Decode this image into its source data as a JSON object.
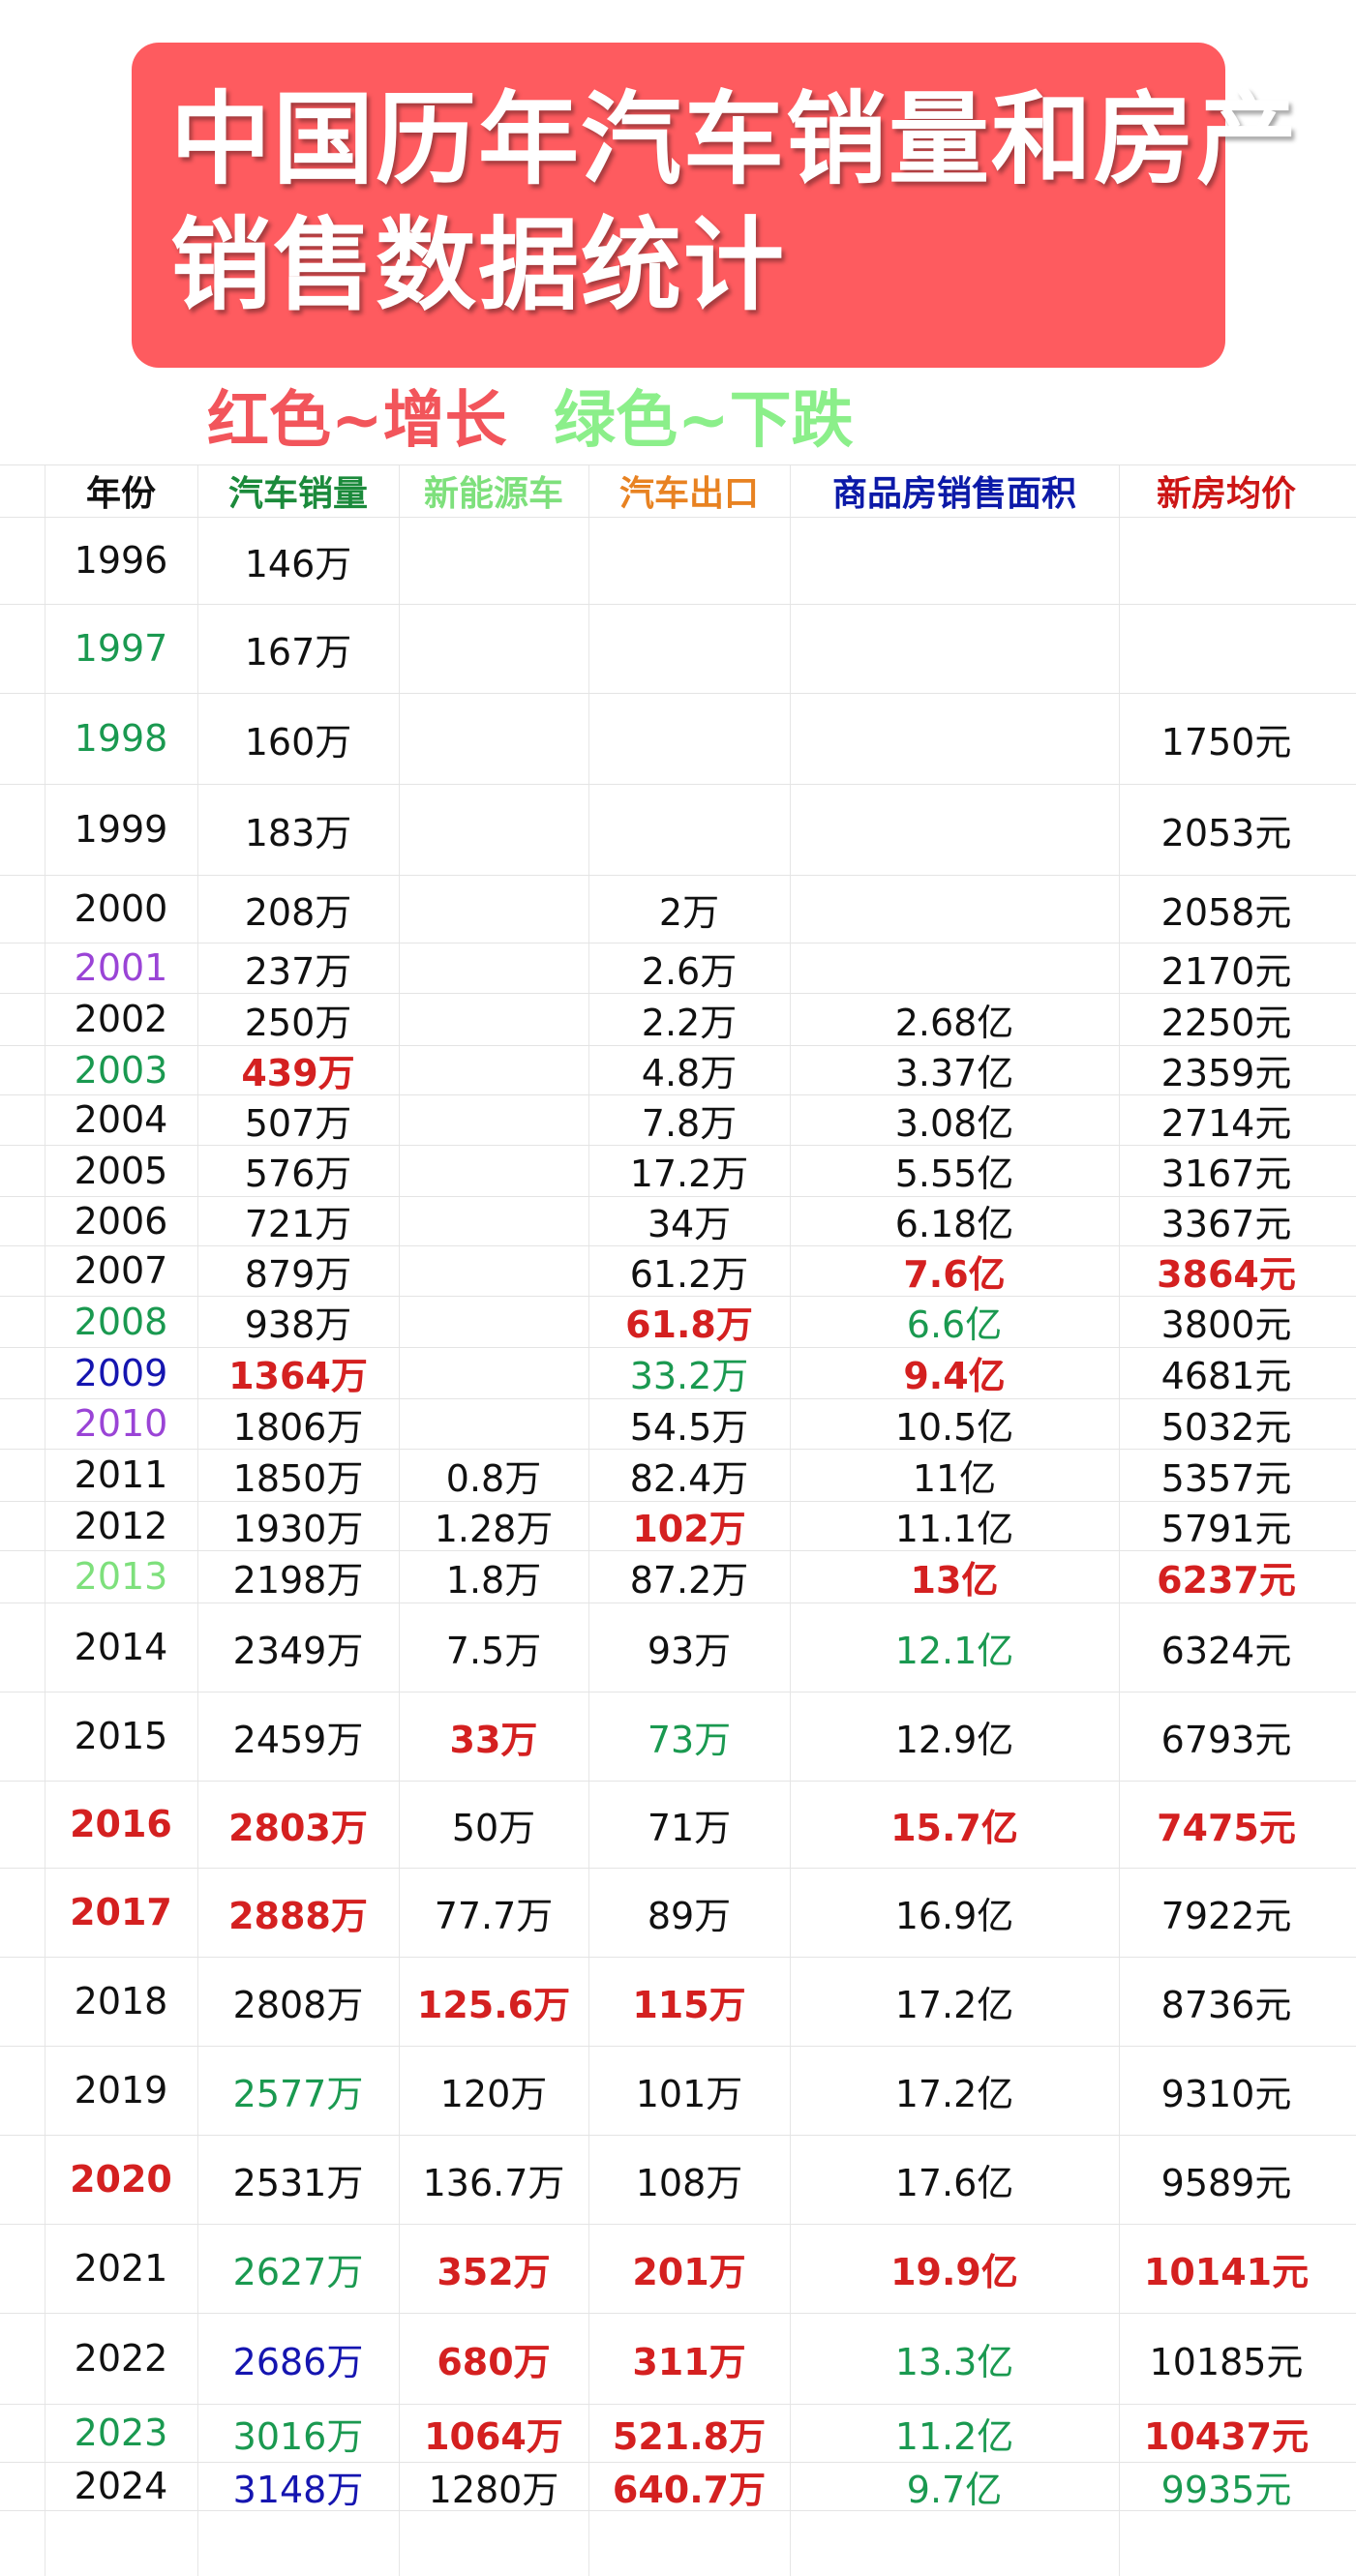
{
  "title_line1": "中国历年汽车销量和房产",
  "title_line2": "销售数据统计",
  "legend_up": "红色~增长",
  "legend_down": "绿色~下跌",
  "colors": {
    "banner": "#fe5b5f",
    "increase": "#d42020",
    "decrease": "#1a9950",
    "purple": "#9a44d6",
    "blue": "#1515b0",
    "lime": "#7ee07c"
  },
  "headers": [
    {
      "text": "年份",
      "color": "black"
    },
    {
      "text": "汽车销量",
      "color": "dgreen"
    },
    {
      "text": "新能源车",
      "color": "lime"
    },
    {
      "text": "汽车出口",
      "color": "orange"
    },
    {
      "text": "商品房销售面积",
      "color": "navy"
    },
    {
      "text": "新房均价",
      "color": "hred"
    }
  ],
  "rows": [
    {
      "year": [
        "1996",
        ""
      ],
      "cars": [
        "146万",
        ""
      ],
      "nev": [
        "",
        ""
      ],
      "export": [
        "",
        ""
      ],
      "area": [
        "",
        ""
      ],
      "price": [
        "",
        ""
      ]
    },
    {
      "year": [
        "1997",
        "green"
      ],
      "cars": [
        "167万",
        ""
      ],
      "nev": [
        "",
        ""
      ],
      "export": [
        "",
        ""
      ],
      "area": [
        "",
        ""
      ],
      "price": [
        "",
        ""
      ]
    },
    {
      "year": [
        "1998",
        "green"
      ],
      "cars": [
        "160万",
        ""
      ],
      "nev": [
        "",
        ""
      ],
      "export": [
        "",
        ""
      ],
      "area": [
        "",
        ""
      ],
      "price": [
        "1750元",
        ""
      ]
    },
    {
      "year": [
        "1999",
        ""
      ],
      "cars": [
        "183万",
        ""
      ],
      "nev": [
        "",
        ""
      ],
      "export": [
        "",
        ""
      ],
      "area": [
        "",
        ""
      ],
      "price": [
        "2053元",
        ""
      ]
    },
    {
      "year": [
        "2000",
        ""
      ],
      "cars": [
        "208万",
        ""
      ],
      "nev": [
        "",
        ""
      ],
      "export": [
        "2万",
        ""
      ],
      "area": [
        "",
        ""
      ],
      "price": [
        "2058元",
        ""
      ]
    },
    {
      "year": [
        "2001",
        "purple"
      ],
      "cars": [
        "237万",
        ""
      ],
      "nev": [
        "",
        ""
      ],
      "export": [
        "2.6万",
        ""
      ],
      "area": [
        "",
        ""
      ],
      "price": [
        "2170元",
        ""
      ]
    },
    {
      "year": [
        "2002",
        ""
      ],
      "cars": [
        "250万",
        ""
      ],
      "nev": [
        "",
        ""
      ],
      "export": [
        "2.2万",
        ""
      ],
      "area": [
        "2.68亿",
        ""
      ],
      "price": [
        "2250元",
        ""
      ]
    },
    {
      "year": [
        "2003",
        "green"
      ],
      "cars": [
        "439万",
        "red"
      ],
      "nev": [
        "",
        ""
      ],
      "export": [
        "4.8万",
        ""
      ],
      "area": [
        "3.37亿",
        ""
      ],
      "price": [
        "2359元",
        ""
      ]
    },
    {
      "year": [
        "2004",
        ""
      ],
      "cars": [
        "507万",
        ""
      ],
      "nev": [
        "",
        ""
      ],
      "export": [
        "7.8万",
        ""
      ],
      "area": [
        "3.08亿",
        ""
      ],
      "price": [
        "2714元",
        ""
      ]
    },
    {
      "year": [
        "2005",
        ""
      ],
      "cars": [
        "576万",
        ""
      ],
      "nev": [
        "",
        ""
      ],
      "export": [
        "17.2万",
        ""
      ],
      "area": [
        "5.55亿",
        ""
      ],
      "price": [
        "3167元",
        ""
      ]
    },
    {
      "year": [
        "2006",
        ""
      ],
      "cars": [
        "721万",
        ""
      ],
      "nev": [
        "",
        ""
      ],
      "export": [
        "34万",
        ""
      ],
      "area": [
        "6.18亿",
        ""
      ],
      "price": [
        "3367元",
        ""
      ]
    },
    {
      "year": [
        "2007",
        ""
      ],
      "cars": [
        "879万",
        ""
      ],
      "nev": [
        "",
        ""
      ],
      "export": [
        "61.2万",
        ""
      ],
      "area": [
        "7.6亿",
        "red"
      ],
      "price": [
        "3864元",
        "red"
      ]
    },
    {
      "year": [
        "2008",
        "green"
      ],
      "cars": [
        "938万",
        ""
      ],
      "nev": [
        "",
        ""
      ],
      "export": [
        "61.8万",
        "red"
      ],
      "area": [
        "6.6亿",
        "green"
      ],
      "price": [
        "3800元",
        ""
      ]
    },
    {
      "year": [
        "2009",
        "blue"
      ],
      "cars": [
        "1364万",
        "red"
      ],
      "nev": [
        "",
        ""
      ],
      "export": [
        "33.2万",
        "green"
      ],
      "area": [
        "9.4亿",
        "red"
      ],
      "price": [
        "4681元",
        ""
      ]
    },
    {
      "year": [
        "2010",
        "purple"
      ],
      "cars": [
        "1806万",
        ""
      ],
      "nev": [
        "",
        ""
      ],
      "export": [
        "54.5万",
        ""
      ],
      "area": [
        "10.5亿",
        ""
      ],
      "price": [
        "5032元",
        ""
      ]
    },
    {
      "year": [
        "2011",
        ""
      ],
      "cars": [
        "1850万",
        ""
      ],
      "nev": [
        "0.8万",
        ""
      ],
      "export": [
        "82.4万",
        ""
      ],
      "area": [
        "11亿",
        ""
      ],
      "price": [
        "5357元",
        ""
      ]
    },
    {
      "year": [
        "2012",
        ""
      ],
      "cars": [
        "1930万",
        ""
      ],
      "nev": [
        "1.28万",
        ""
      ],
      "export": [
        "102万",
        "red"
      ],
      "area": [
        "11.1亿",
        ""
      ],
      "price": [
        "5791元",
        ""
      ]
    },
    {
      "year": [
        "2013",
        "lime"
      ],
      "cars": [
        "2198万",
        ""
      ],
      "nev": [
        "1.8万",
        ""
      ],
      "export": [
        "87.2万",
        ""
      ],
      "area": [
        "13亿",
        "red"
      ],
      "price": [
        "6237元",
        "red"
      ]
    },
    {
      "year": [
        "2014",
        ""
      ],
      "cars": [
        "2349万",
        ""
      ],
      "nev": [
        "7.5万",
        ""
      ],
      "export": [
        "93万",
        ""
      ],
      "area": [
        "12.1亿",
        "green"
      ],
      "price": [
        "6324元",
        ""
      ]
    },
    {
      "year": [
        "2015",
        ""
      ],
      "cars": [
        "2459万",
        ""
      ],
      "nev": [
        "33万",
        "red"
      ],
      "export": [
        "73万",
        "green"
      ],
      "area": [
        "12.9亿",
        ""
      ],
      "price": [
        "6793元",
        ""
      ]
    },
    {
      "year": [
        "2016",
        "red"
      ],
      "cars": [
        "2803万",
        "red"
      ],
      "nev": [
        "50万",
        ""
      ],
      "export": [
        "71万",
        ""
      ],
      "area": [
        "15.7亿",
        "red"
      ],
      "price": [
        "7475元",
        "red"
      ]
    },
    {
      "year": [
        "2017",
        "red"
      ],
      "cars": [
        "2888万",
        "red"
      ],
      "nev": [
        "77.7万",
        ""
      ],
      "export": [
        "89万",
        ""
      ],
      "area": [
        "16.9亿",
        ""
      ],
      "price": [
        "7922元",
        ""
      ]
    },
    {
      "year": [
        "2018",
        ""
      ],
      "cars": [
        "2808万",
        ""
      ],
      "nev": [
        "125.6万",
        "red"
      ],
      "export": [
        "115万",
        "red"
      ],
      "area": [
        "17.2亿",
        ""
      ],
      "price": [
        "8736元",
        ""
      ]
    },
    {
      "year": [
        "2019",
        ""
      ],
      "cars": [
        "2577万",
        "green"
      ],
      "nev": [
        "120万",
        ""
      ],
      "export": [
        "101万",
        ""
      ],
      "area": [
        "17.2亿",
        ""
      ],
      "price": [
        "9310元",
        ""
      ]
    },
    {
      "year": [
        "2020",
        "red"
      ],
      "cars": [
        "2531万",
        ""
      ],
      "nev": [
        "136.7万",
        ""
      ],
      "export": [
        "108万",
        ""
      ],
      "area": [
        "17.6亿",
        ""
      ],
      "price": [
        "9589元",
        ""
      ]
    },
    {
      "year": [
        "2021",
        ""
      ],
      "cars": [
        "2627万",
        "green"
      ],
      "nev": [
        "352万",
        "red"
      ],
      "export": [
        "201万",
        "red"
      ],
      "area": [
        "19.9亿",
        "red"
      ],
      "price": [
        "10141元",
        "red"
      ]
    },
    {
      "year": [
        "2022",
        ""
      ],
      "cars": [
        "2686万",
        "blue"
      ],
      "nev": [
        "680万",
        "red"
      ],
      "export": [
        "311万",
        "red"
      ],
      "area": [
        "13.3亿",
        "green"
      ],
      "price": [
        "10185元",
        ""
      ]
    },
    {
      "year": [
        "2023",
        "green"
      ],
      "cars": [
        "3016万",
        "green"
      ],
      "nev": [
        "1064万",
        "red"
      ],
      "export": [
        "521.8万",
        "red"
      ],
      "area": [
        "11.2亿",
        "green"
      ],
      "price": [
        "10437元",
        "red"
      ]
    },
    {
      "year": [
        "2024",
        ""
      ],
      "cars": [
        "3148万",
        "blue"
      ],
      "nev": [
        "1280万",
        ""
      ],
      "export": [
        "640.7万",
        "red"
      ],
      "area": [
        "9.7亿",
        "green"
      ],
      "price": [
        "9935元",
        "green"
      ]
    }
  ]
}
